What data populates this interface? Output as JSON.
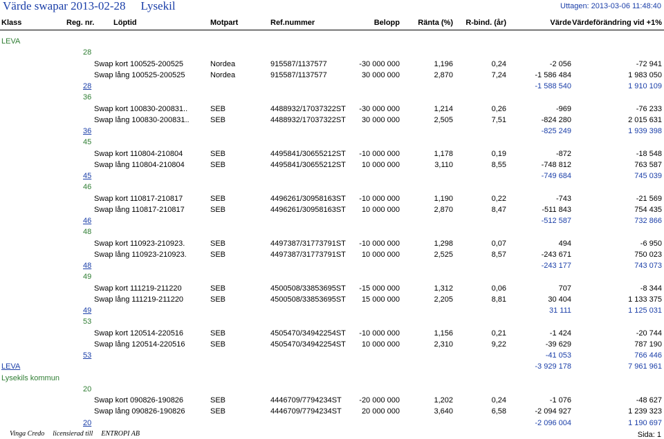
{
  "report": {
    "title": "Värde swapar 2013-02-28",
    "company": "Lysekil",
    "printed": "Uttagen: 2013-03-06 11:48:40",
    "footer": {
      "vendor": "Vinga Credo",
      "licensed": "licensierad till",
      "licensee": "ENTROPI AB",
      "page": "Sida: 1"
    }
  },
  "headers": {
    "klass": "Klass",
    "reg": "Reg. nr.",
    "lop": "Löptid",
    "mot": "Motpart",
    "ref": "Ref.nummer",
    "bel": "Belopp",
    "rnt": "Ränta (%)",
    "rb": "R-bind. (år)",
    "var": "Värde",
    "vfd": "Värdeförändring vid +1%"
  },
  "rows": [
    {
      "type": "class",
      "label": "LEVA"
    },
    {
      "type": "reg",
      "label": "28"
    },
    {
      "type": "data",
      "lop": "Swap kort 100525-200525",
      "mot": "Nordea",
      "ref": "915587/1137577",
      "bel": "-30 000 000",
      "rnt": "1,196",
      "rb": "0,24",
      "var": "-2 056",
      "vfd": "-72 941"
    },
    {
      "type": "data",
      "lop": "Swap lång 100525-200525",
      "mot": "Nordea",
      "ref": "915587/1137577",
      "bel": "30 000 000",
      "rnt": "2,870",
      "rb": "7,24",
      "var": "-1 586 484",
      "vfd": "1 983 050"
    },
    {
      "type": "sub",
      "label": "28",
      "var": "-1 588 540",
      "vfd": "1 910 109"
    },
    {
      "type": "reg",
      "label": "36"
    },
    {
      "type": "data",
      "lop": "Swap kort 100830-200831..",
      "mot": "SEB",
      "ref": "4488932/17037322ST",
      "bel": "-30 000 000",
      "rnt": "1,214",
      "rb": "0,26",
      "var": "-969",
      "vfd": "-76 233"
    },
    {
      "type": "data",
      "lop": "Swap lång 100830-200831..",
      "mot": "SEB",
      "ref": "4488932/17037322ST",
      "bel": "30 000 000",
      "rnt": "2,505",
      "rb": "7,51",
      "var": "-824 280",
      "vfd": "2 015 631"
    },
    {
      "type": "sub",
      "label": "36",
      "var": "-825 249",
      "vfd": "1 939 398"
    },
    {
      "type": "reg",
      "label": "45"
    },
    {
      "type": "data",
      "lop": "Swap kort 110804-210804",
      "mot": "SEB",
      "ref": "4495841/30655212ST",
      "bel": "-10 000 000",
      "rnt": "1,178",
      "rb": "0,19",
      "var": "-872",
      "vfd": "-18 548"
    },
    {
      "type": "data",
      "lop": "Swap lång 110804-210804",
      "mot": "SEB",
      "ref": "4495841/30655212ST",
      "bel": "10 000 000",
      "rnt": "3,110",
      "rb": "8,55",
      "var": "-748 812",
      "vfd": "763 587"
    },
    {
      "type": "sub",
      "label": "45",
      "var": "-749 684",
      "vfd": "745 039"
    },
    {
      "type": "reg",
      "label": "46"
    },
    {
      "type": "data",
      "lop": "Swap kort 110817-210817",
      "mot": "SEB",
      "ref": "4496261/30958163ST",
      "bel": "-10 000 000",
      "rnt": "1,190",
      "rb": "0,22",
      "var": "-743",
      "vfd": "-21 569"
    },
    {
      "type": "data",
      "lop": "Swap lång 110817-210817",
      "mot": "SEB",
      "ref": "4496261/30958163ST",
      "bel": "10 000 000",
      "rnt": "2,870",
      "rb": "8,47",
      "var": "-511 843",
      "vfd": "754 435"
    },
    {
      "type": "sub",
      "label": "46",
      "var": "-512 587",
      "vfd": "732 866"
    },
    {
      "type": "reg",
      "label": "48"
    },
    {
      "type": "data",
      "lop": "Swap kort 110923-210923.",
      "mot": "SEB",
      "ref": "4497387/31773791ST",
      "bel": "-10 000 000",
      "rnt": "1,298",
      "rb": "0,07",
      "var": "494",
      "vfd": "-6 950"
    },
    {
      "type": "data",
      "lop": "Swap lång 110923-210923.",
      "mot": "SEB",
      "ref": "4497387/31773791ST",
      "bel": "10 000 000",
      "rnt": "2,525",
      "rb": "8,57",
      "var": "-243 671",
      "vfd": "750 023"
    },
    {
      "type": "sub",
      "label": "48",
      "var": "-243 177",
      "vfd": "743 073"
    },
    {
      "type": "reg",
      "label": "49"
    },
    {
      "type": "data",
      "lop": "Swap kort 111219-211220",
      "mot": "SEB",
      "ref": "4500508/33853695ST",
      "bel": "-15 000 000",
      "rnt": "1,312",
      "rb": "0,06",
      "var": "707",
      "vfd": "-8 344"
    },
    {
      "type": "data",
      "lop": "Swap lång 111219-211220",
      "mot": "SEB",
      "ref": "4500508/33853695ST",
      "bel": "15 000 000",
      "rnt": "2,205",
      "rb": "8,81",
      "var": "30 404",
      "vfd": "1 133 375"
    },
    {
      "type": "sub",
      "label": "49",
      "var": "31 111",
      "vfd": "1 125 031"
    },
    {
      "type": "reg",
      "label": "53"
    },
    {
      "type": "data",
      "lop": "Swap kort 120514-220516",
      "mot": "SEB",
      "ref": "4505470/34942254ST",
      "bel": "-10 000 000",
      "rnt": "1,156",
      "rb": "0,21",
      "var": "-1 424",
      "vfd": "-20 744"
    },
    {
      "type": "data",
      "lop": "Swap lång 120514-220516",
      "mot": "SEB",
      "ref": "4505470/34942254ST",
      "bel": "10 000 000",
      "rnt": "2,310",
      "rb": "9,22",
      "var": "-39 629",
      "vfd": "787 190"
    },
    {
      "type": "sub",
      "label": "53",
      "var": "-41 053",
      "vfd": "766 446"
    },
    {
      "type": "classsub",
      "label": "LEVA",
      "var": "-3 929 178",
      "vfd": "7 961 961"
    },
    {
      "type": "class",
      "label": "Lysekils kommun"
    },
    {
      "type": "reg",
      "label": "20"
    },
    {
      "type": "data",
      "lop": "Swap kort 090826-190826",
      "mot": "SEB",
      "ref": "4446709/7794234ST",
      "bel": "-20 000 000",
      "rnt": "1,202",
      "rb": "0,24",
      "var": "-1 076",
      "vfd": "-48 627"
    },
    {
      "type": "data",
      "lop": "Swap lång 090826-190826",
      "mot": "SEB",
      "ref": "4446709/7794234ST",
      "bel": "20 000 000",
      "rnt": "3,640",
      "rb": "6,58",
      "var": "-2 094 927",
      "vfd": "1 239 323"
    },
    {
      "type": "sub",
      "label": "20",
      "var": "-2 096 004",
      "vfd": "1 190 697"
    }
  ]
}
